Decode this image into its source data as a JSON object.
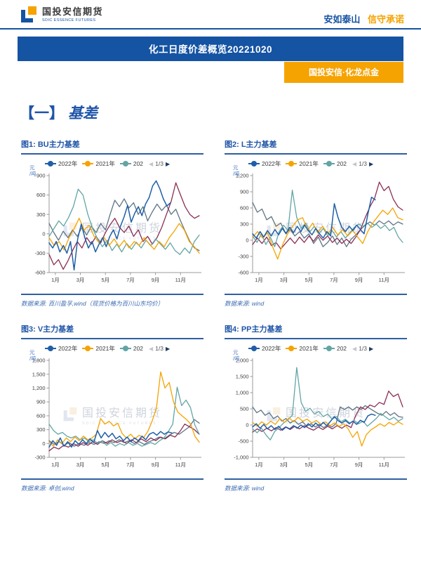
{
  "header": {
    "logo_cn": "国投安信期货",
    "logo_en": "SDIC ESSENCE FUTURES",
    "slogan_blue": "安如泰山",
    "slogan_orange": "信守承诺",
    "banner_title": "化工日度价差概览20221020",
    "ribbon_label": "国投安信·化龙点金"
  },
  "section": {
    "marker": "【一】",
    "title": "基差"
  },
  "watermark": {
    "cn": "国投安信期货",
    "en": "SDIC ESSENCE FUTURES"
  },
  "legend": {
    "items": [
      {
        "label": "2022年",
        "color": "#1F5FA8"
      },
      {
        "label": "2021年",
        "color": "#F5A300"
      },
      {
        "label": "202",
        "color": "#62A5A5"
      }
    ],
    "pager_label": "1/3",
    "prev_icon": "◀",
    "next_icon": "▶"
  },
  "colors": {
    "brand_blue": "#1553A3",
    "accent_orange": "#F5A300",
    "line_2022": "#1F5FA8",
    "line_2021": "#F5A300",
    "line_2020": "#62A5A5",
    "line_slate": "#5E7384",
    "line_maroon": "#8C2D53"
  },
  "chart_data": [
    {
      "type": "line",
      "title": "图1: BU主力基差",
      "unit": "元/吨",
      "source_line": "数据来源: 百川盈孚,wind（现货价格为百川山东均价）",
      "ylim": [
        -600,
        900
      ],
      "yticks": [
        900,
        600,
        300,
        0,
        -300,
        -600
      ],
      "xtick_labels": [
        "1月",
        "3月",
        "5月",
        "7月",
        "9月",
        "11月"
      ],
      "xtick_months": [
        0.5,
        2.5,
        4.5,
        6.5,
        8.5,
        10.5
      ],
      "x_range_months": [
        0,
        12
      ],
      "series": [
        {
          "id": "extra-slate",
          "label": "",
          "color": "#5E7384",
          "x_end": 12,
          "values": [
            160,
            20,
            -100,
            40,
            -60,
            60,
            -40,
            100,
            -20,
            120,
            20,
            160,
            60,
            300,
            520,
            420,
            540,
            400,
            480,
            300,
            420,
            200,
            340,
            460,
            360,
            440,
            300,
            380,
            200,
            40,
            -120,
            -220,
            -260
          ]
        },
        {
          "id": "extra-maroon",
          "label": "",
          "color": "#8C2D53",
          "x_end": 12,
          "values": [
            -320,
            -480,
            -400,
            -550,
            -420,
            -260,
            -120,
            -220,
            -60,
            -160,
            -40,
            -140,
            20,
            140,
            240,
            100,
            20,
            120,
            -40,
            60,
            -120,
            -40,
            -160,
            -60,
            100,
            300,
            500,
            790,
            600,
            420,
            300,
            240,
            280
          ]
        },
        {
          "id": "y2020",
          "label": "202",
          "color": "#62A5A5",
          "x_end": 12,
          "values": [
            -40,
            80,
            200,
            120,
            250,
            420,
            690,
            600,
            300,
            80,
            -80,
            -200,
            -100,
            -260,
            -160,
            -280,
            -150,
            -240,
            -130,
            -220,
            -100,
            -180,
            -80,
            -160,
            -240,
            -140,
            -260,
            -320,
            -220,
            -300,
            -120,
            -20
          ]
        },
        {
          "id": "y2021",
          "label": "2021年",
          "color": "#F5A300",
          "x_end": 12,
          "values": [
            -60,
            -180,
            -120,
            -250,
            -60,
            80,
            240,
            60,
            130,
            -40,
            -140,
            -60,
            -180,
            -80,
            -200,
            -100,
            -220,
            -120,
            -180,
            -60,
            -160,
            -240,
            -120,
            -200,
            -60,
            40,
            160,
            60,
            -120,
            -200,
            -300
          ]
        },
        {
          "id": "y2022",
          "label": "2022年",
          "color": "#1F5FA8",
          "x_end": 9.7,
          "values": [
            -140,
            -220,
            -120,
            -280,
            -180,
            -300,
            -120,
            -560,
            -80,
            150,
            -60,
            -220,
            -120,
            -280,
            -160,
            -60,
            -200,
            -40,
            60,
            -80,
            120,
            260,
            440,
            180,
            320,
            420,
            280,
            460,
            560,
            740,
            820,
            700,
            540,
            430,
            480
          ]
        }
      ]
    },
    {
      "type": "line",
      "title": "图2: L主力基差",
      "unit": "元/吨",
      "source_line": "数据来源: wind",
      "ylim": [
        -600,
        1200
      ],
      "yticks": [
        1200,
        900,
        600,
        300,
        0,
        -300,
        -600
      ],
      "xtick_labels": [
        "1月",
        "3月",
        "5月",
        "7月",
        "9月",
        "11月"
      ],
      "xtick_months": [
        0.5,
        2.5,
        4.5,
        6.5,
        8.5,
        10.5
      ],
      "x_range_months": [
        0,
        12
      ],
      "series": [
        {
          "id": "extra-slate",
          "label": "",
          "color": "#5E7384",
          "x_end": 12,
          "values": [
            700,
            520,
            580,
            380,
            440,
            260,
            320,
            140,
            200,
            80,
            160,
            40,
            120,
            -60,
            60,
            -120,
            -40,
            80,
            -80,
            40,
            -120,
            20,
            100,
            200,
            280,
            340,
            280,
            360,
            300,
            360,
            280,
            340,
            300
          ]
        },
        {
          "id": "extra-maroon",
          "label": "",
          "color": "#8C2D53",
          "x_end": 12,
          "values": [
            -80,
            40,
            -60,
            60,
            -100,
            -40,
            -160,
            -60,
            40,
            -60,
            60,
            -40,
            80,
            -20,
            100,
            0,
            80,
            -40,
            40,
            -60,
            20,
            -60,
            60,
            200,
            420,
            620,
            780,
            1080,
            920,
            1000,
            760,
            620,
            560
          ]
        },
        {
          "id": "y2020",
          "label": "202",
          "color": "#62A5A5",
          "x_end": 12,
          "values": [
            80,
            -40,
            120,
            -80,
            60,
            -120,
            160,
            280,
            180,
            930,
            420,
            220,
            320,
            160,
            260,
            120,
            220,
            80,
            180,
            60,
            160,
            40,
            140,
            240,
            300,
            260,
            320,
            240,
            300,
            220,
            280,
            180,
            240,
            60,
            -40
          ]
        },
        {
          "id": "y2021",
          "label": "2021年",
          "color": "#F5A300",
          "x_end": 12,
          "values": [
            60,
            160,
            40,
            140,
            -120,
            -350,
            -80,
            120,
            260,
            380,
            420,
            180,
            320,
            140,
            260,
            120,
            240,
            100,
            200,
            80,
            180,
            60,
            -60,
            160,
            320,
            440,
            560,
            480,
            600,
            420,
            380
          ]
        },
        {
          "id": "y2022",
          "label": "2022年",
          "color": "#1F5FA8",
          "x_end": 9.8,
          "values": [
            120,
            40,
            160,
            60,
            180,
            80,
            200,
            100,
            220,
            120,
            240,
            140,
            260,
            160,
            280,
            180,
            100,
            220,
            120,
            40,
            160,
            80,
            680,
            420,
            240,
            160,
            260,
            180,
            280,
            200,
            120,
            480,
            800,
            750
          ]
        }
      ]
    },
    {
      "type": "line",
      "title": "图3: V主力基差",
      "unit": "元/吨",
      "source_line": "数据来源: 卓创,wind",
      "ylim": [
        -300,
        1800
      ],
      "yticks": [
        1800,
        1500,
        1200,
        900,
        600,
        300,
        0,
        -300
      ],
      "xtick_labels": [
        "1月",
        "3月",
        "5月",
        "7月",
        "9月",
        "11月"
      ],
      "xtick_months": [
        0.5,
        2.5,
        4.5,
        6.5,
        8.5,
        10.5
      ],
      "x_range_months": [
        0,
        12
      ],
      "series": [
        {
          "id": "extra-slate",
          "label": "",
          "color": "#5E7384",
          "x_end": 12,
          "values": [
            60,
            -20,
            40,
            -40,
            20,
            -60,
            0,
            -40,
            20,
            -20,
            40,
            0,
            60,
            20,
            80,
            20,
            60,
            0,
            40,
            -20,
            40,
            80,
            140,
            100,
            180,
            240,
            200,
            280,
            360,
            520,
            440
          ]
        },
        {
          "id": "extra-maroon",
          "label": "",
          "color": "#8C2D53",
          "x_end": 12,
          "values": [
            -160,
            -80,
            -120,
            -40,
            -80,
            0,
            -60,
            20,
            -40,
            40,
            -20,
            60,
            0,
            80,
            20,
            60,
            0,
            80,
            20,
            100,
            40,
            120,
            60,
            140,
            100,
            180,
            140,
            260,
            420,
            360,
            300,
            200
          ]
        },
        {
          "id": "y2020",
          "label": "202",
          "color": "#62A5A5",
          "x_end": 12,
          "values": [
            420,
            280,
            200,
            240,
            160,
            120,
            160,
            80,
            120,
            40,
            80,
            0,
            60,
            -40,
            20,
            -60,
            0,
            -40,
            20,
            -40,
            0,
            -60,
            -20,
            20,
            -20,
            60,
            120,
            260,
            420,
            1220,
            820,
            940,
            780,
            400,
            200
          ]
        },
        {
          "id": "y2021",
          "label": "2021年",
          "color": "#F5A300",
          "x_end": 12,
          "values": [
            40,
            -60,
            80,
            0,
            120,
            40,
            140,
            60,
            160,
            80,
            120,
            200,
            540,
            420,
            480,
            380,
            440,
            220,
            120,
            200,
            100,
            180,
            120,
            260,
            480,
            760,
            1550,
            1200,
            1320,
            900,
            680,
            600,
            520,
            420,
            150,
            30
          ]
        },
        {
          "id": "y2022",
          "label": "2022年",
          "color": "#1F5FA8",
          "x_end": 9.8,
          "values": [
            -80,
            60,
            -40,
            120,
            -60,
            40,
            -80,
            60,
            -20,
            80,
            0,
            100,
            20,
            280,
            120,
            240,
            140,
            220,
            100,
            160,
            60,
            140,
            40,
            120,
            60,
            160,
            80,
            200,
            240,
            180,
            260,
            200,
            250,
            230
          ]
        }
      ]
    },
    {
      "type": "line",
      "title": "图4: PP主力基差",
      "unit": "元/吨",
      "source_line": "数据来源: wind",
      "ylim": [
        -1000,
        2000
      ],
      "yticks": [
        2000,
        1500,
        1000,
        500,
        0,
        -500,
        -1000
      ],
      "xtick_labels": [
        "1月",
        "3月",
        "5月",
        "7月",
        "9月",
        "11月"
      ],
      "xtick_months": [
        0.5,
        2.5,
        4.5,
        6.5,
        8.5,
        10.5
      ],
      "x_range_months": [
        0,
        12
      ],
      "series": [
        {
          "id": "extra-slate",
          "label": "",
          "color": "#5E7384",
          "x_end": 12,
          "values": [
            560,
            380,
            460,
            300,
            380,
            200,
            280,
            120,
            200,
            60,
            140,
            20,
            100,
            -40,
            40,
            -60,
            20,
            -80,
            0,
            -60,
            40,
            560,
            480,
            560,
            460,
            560,
            480,
            600,
            520,
            440,
            360,
            300,
            420,
            300,
            380,
            260,
            240
          ]
        },
        {
          "id": "extra-maroon",
          "label": "",
          "color": "#8C2D53",
          "x_end": 12,
          "values": [
            -220,
            -120,
            -200,
            -100,
            -180,
            -80,
            -160,
            -60,
            -140,
            -40,
            -120,
            -20,
            -100,
            -160,
            -60,
            -140,
            -40,
            -120,
            -20,
            -100,
            0,
            -80,
            300,
            560,
            480,
            620,
            560,
            700,
            640,
            1050,
            880,
            960,
            560
          ]
        },
        {
          "id": "y2020",
          "label": "202",
          "color": "#62A5A5",
          "x_end": 12,
          "values": [
            -120,
            -240,
            -100,
            -300,
            -460,
            -200,
            -80,
            60,
            160,
            300,
            1780,
            700,
            420,
            520,
            340,
            420,
            260,
            340,
            180,
            260,
            100,
            180,
            60,
            140,
            40,
            120,
            -40,
            80,
            200,
            360,
            260,
            160,
            240,
            120,
            200
          ]
        },
        {
          "id": "y2021",
          "label": "2021年",
          "color": "#F5A300",
          "x_end": 12,
          "values": [
            80,
            -40,
            100,
            0,
            120,
            20,
            200,
            80,
            220,
            100,
            240,
            120,
            180,
            60,
            140,
            20,
            100,
            -20,
            60,
            -40,
            40,
            -120,
            -380,
            -200,
            -650,
            -300,
            -150,
            -60,
            40,
            -40,
            80,
            0,
            100,
            20
          ]
        },
        {
          "id": "y2022",
          "label": "2022年",
          "color": "#1F5FA8",
          "x_end": 9.8,
          "values": [
            -60,
            40,
            -100,
            20,
            -120,
            -20,
            -140,
            -40,
            -160,
            -60,
            -120,
            -20,
            -100,
            0,
            -80,
            40,
            -60,
            60,
            -40,
            80,
            -20,
            120,
            260,
            140,
            60,
            140,
            40,
            120,
            20,
            150,
            80,
            280,
            340,
            300
          ]
        }
      ]
    }
  ]
}
